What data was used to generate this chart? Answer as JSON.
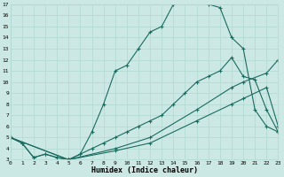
{
  "title": "Humidex (Indice chaleur)",
  "background_color": "#cce8e4",
  "grid_color": "#b0d8d0",
  "line_color": "#1a6b60",
  "ylim": [
    3,
    17
  ],
  "xlim": [
    0,
    23
  ],
  "yticks": [
    3,
    4,
    5,
    6,
    7,
    8,
    9,
    10,
    11,
    12,
    13,
    14,
    15,
    16,
    17
  ],
  "xticks": [
    0,
    1,
    2,
    3,
    4,
    5,
    6,
    7,
    8,
    9,
    10,
    11,
    12,
    13,
    14,
    15,
    16,
    17,
    18,
    19,
    20,
    21,
    22,
    23
  ],
  "xtick_labels": [
    "0",
    "1",
    "2",
    "3",
    "4",
    "5",
    "6",
    "7",
    "8",
    "9",
    "10",
    "11",
    "12",
    "13",
    "14",
    "15",
    "16",
    "17",
    "18",
    "19",
    "20",
    "21",
    "22",
    "23"
  ],
  "line1_x": [
    0,
    1,
    2,
    3,
    4,
    5,
    6,
    7,
    8,
    9,
    10,
    11,
    12,
    13,
    14,
    15,
    16,
    17,
    18,
    19,
    20,
    21,
    22,
    23
  ],
  "line1_y": [
    5.0,
    4.5,
    3.2,
    3.5,
    3.2,
    3.0,
    3.5,
    5.5,
    8.0,
    11.0,
    11.5,
    13.0,
    14.5,
    15.0,
    17.0,
    17.2,
    17.2,
    17.0,
    16.7,
    14.0,
    13.0,
    7.5,
    6.0,
    5.5
  ],
  "line2_x": [
    0,
    1,
    2,
    3,
    4,
    5,
    6,
    7,
    8,
    9,
    10,
    11,
    12,
    13,
    14,
    15,
    16,
    17,
    18,
    19,
    20,
    21,
    22,
    23
  ],
  "line2_y": [
    5.0,
    4.5,
    3.2,
    3.5,
    3.2,
    3.0,
    3.5,
    4.0,
    4.5,
    5.0,
    5.5,
    6.0,
    6.5,
    7.0,
    8.0,
    9.0,
    10.0,
    10.5,
    11.0,
    12.2,
    10.5,
    10.2,
    7.5,
    5.5
  ],
  "line3_x": [
    0,
    5,
    9,
    12,
    16,
    19,
    20,
    22,
    23
  ],
  "line3_y": [
    5.0,
    3.0,
    4.0,
    5.0,
    7.5,
    9.5,
    10.0,
    10.8,
    12.0
  ],
  "line4_x": [
    0,
    5,
    9,
    12,
    16,
    19,
    20,
    22,
    23
  ],
  "line4_y": [
    5.0,
    3.0,
    3.8,
    4.5,
    6.5,
    8.0,
    8.5,
    9.5,
    6.0
  ]
}
